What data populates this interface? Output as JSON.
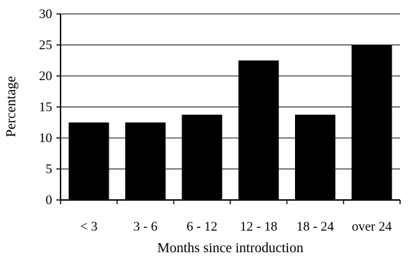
{
  "chart_data": {
    "type": "bar",
    "categories": [
      "< 3",
      "3 - 6",
      "6 - 12",
      "12 - 18",
      "18 - 24",
      "over 24"
    ],
    "values": [
      12.5,
      12.5,
      13.75,
      22.5,
      13.75,
      25
    ],
    "title": "",
    "xlabel": "Months since introduction",
    "ylabel": "Percentage",
    "ylim": [
      0,
      30
    ],
    "yticks": [
      "0",
      "5",
      "10",
      "15",
      "20",
      "25",
      "30"
    ],
    "grid": true,
    "legend": "none",
    "bar_color": "#000000"
  }
}
